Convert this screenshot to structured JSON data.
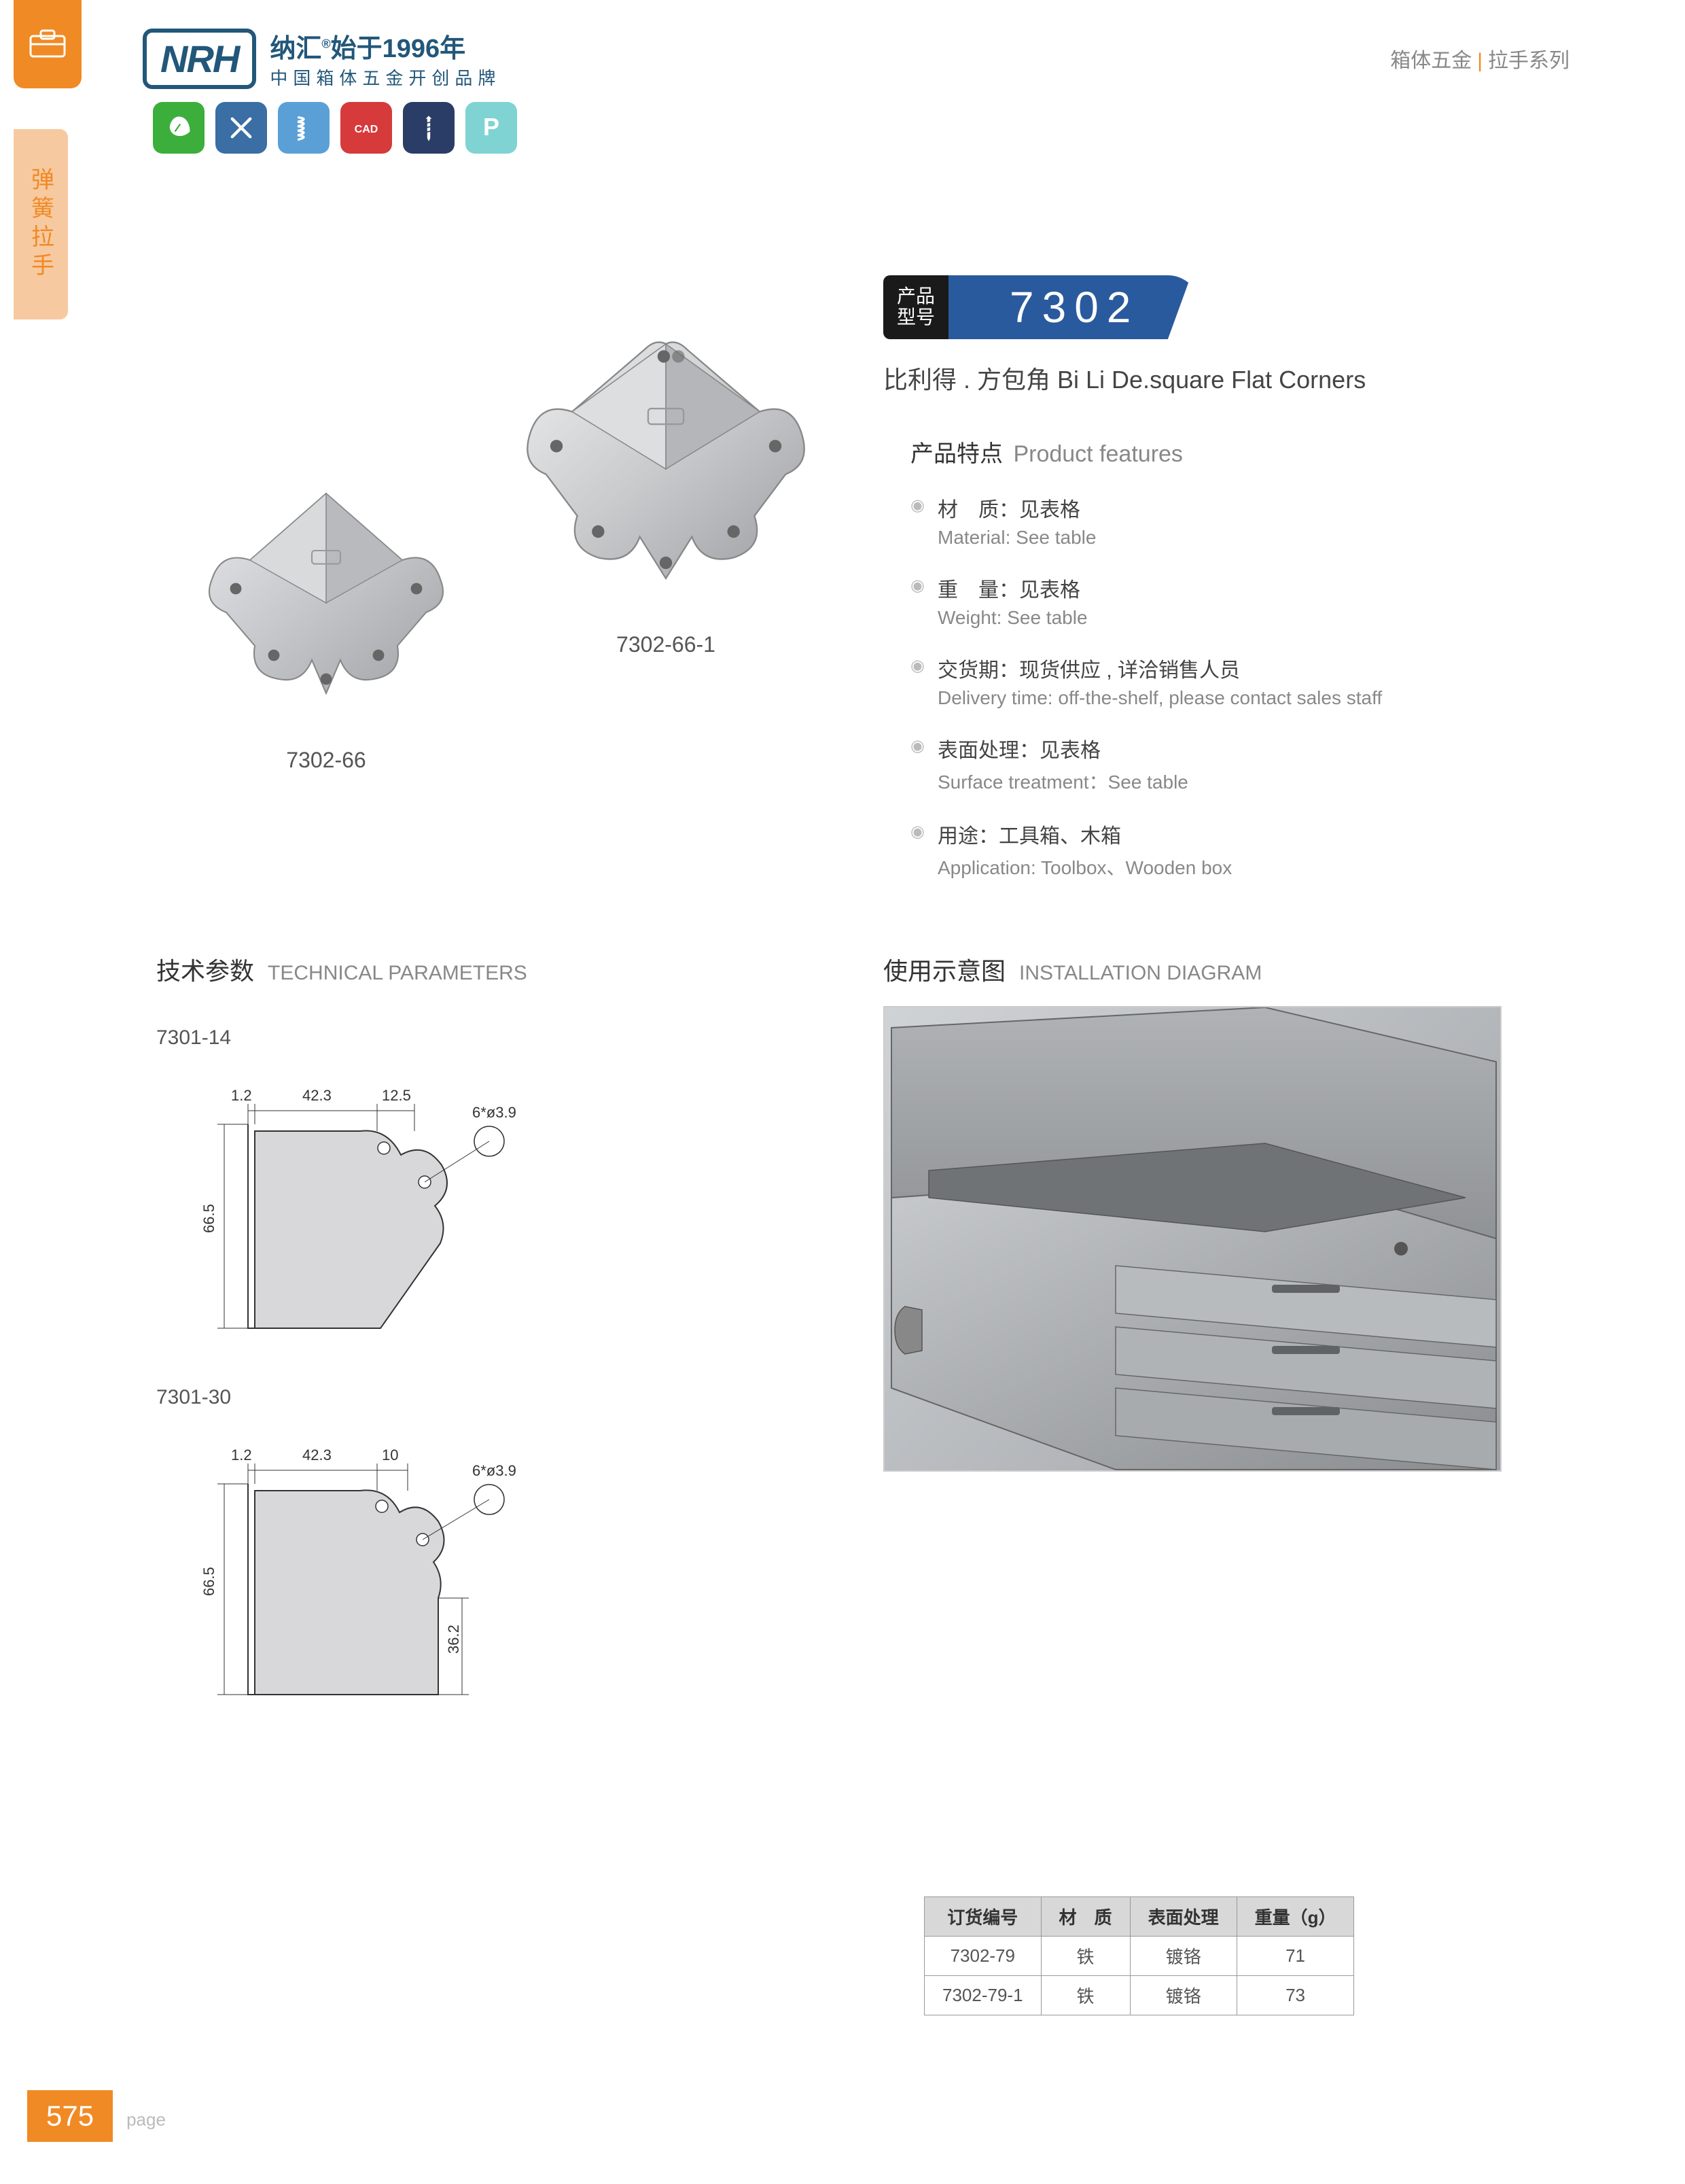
{
  "header": {
    "logo_text": "NRH",
    "brand_cn": "纳汇",
    "since": "始于1996年",
    "tagline": "中国箱体五金开创品牌",
    "breadcrumb_left": "箱体五金",
    "breadcrumb_right": "拉手系列"
  },
  "side_tab": "弹簧拉手",
  "icons": {
    "colors": [
      "#3cae3c",
      "#3a6ea5",
      "#5aa0d6",
      "#d63a3a",
      "#2a3d66",
      "#7fd3d3"
    ],
    "glyphs": [
      "leaf",
      "tools",
      "spring",
      "CAD",
      "screw",
      "P"
    ]
  },
  "model": {
    "label_cn1": "产品",
    "label_cn2": "型号",
    "number": "7302"
  },
  "subtitle": "比利得 . 方包角   Bi Li De.square Flat Corners",
  "product_images": [
    {
      "label": "7302-66"
    },
    {
      "label": "7302-66-1"
    }
  ],
  "features": {
    "title_cn": "产品特点",
    "title_en": "Product features",
    "items": [
      {
        "cn": "材　质：见表格",
        "en": "Material: See table"
      },
      {
        "cn": "重　量：见表格",
        "en": "Weight: See table"
      },
      {
        "cn": "交货期：现货供应 , 详洽销售人员",
        "en": "Delivery time: off-the-shelf, please contact sales staff"
      },
      {
        "cn": "表面处理：见表格",
        "en": "Surface treatment：See table"
      },
      {
        "cn": "用途：工具箱、木箱",
        "en": "Application:  Toolbox、Wooden box"
      }
    ]
  },
  "sections": {
    "tech_cn": "技术参数",
    "tech_en": "TECHNICAL PARAMETERS",
    "inst_cn": "使用示意图",
    "inst_en": "INSTALLATION DIAGRAM"
  },
  "tech_diagrams": [
    {
      "label": "7301-14",
      "dims": {
        "t": "1.2",
        "w1": "42.3",
        "w2": "12.5",
        "holes": "6*ø3.9",
        "h": "66.5"
      }
    },
    {
      "label": "7301-30",
      "dims": {
        "t": "1.2",
        "w1": "42.3",
        "w2": "10",
        "holes": "6*ø3.9",
        "h": "66.5",
        "h2": "36.2"
      }
    }
  ],
  "spec_table": {
    "headers": [
      "订货编号",
      "材　质",
      "表面处理",
      "重量（g）"
    ],
    "rows": [
      [
        "7302-79",
        "铁",
        "镀铬",
        "71"
      ],
      [
        "7302-79-1",
        "铁",
        "镀铬",
        "73"
      ]
    ]
  },
  "page_number": "575",
  "page_label": "page",
  "styling": {
    "accent_orange": "#f08a24",
    "brand_blue": "#22577a",
    "model_blue": "#2a5a9e",
    "text_gray": "#888",
    "border_gray": "#999",
    "table_header_bg": "#d8d8d8"
  }
}
